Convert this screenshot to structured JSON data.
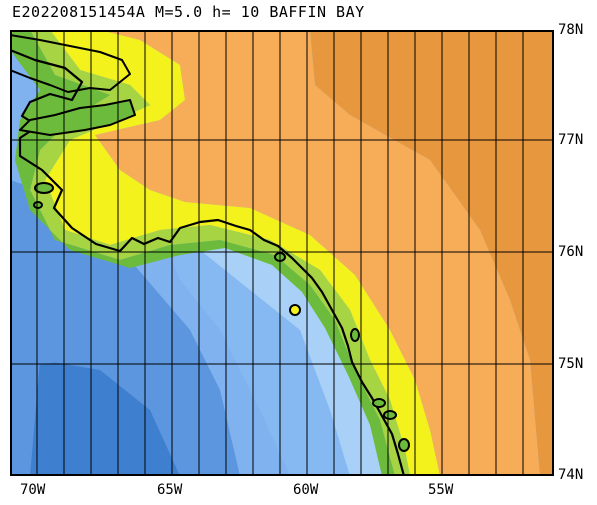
{
  "title": "E202208151454A M=5.0 h= 10 BAFFIN BAY",
  "map": {
    "lat_labels": [
      "78N",
      "77N",
      "76N",
      "75N",
      "74N"
    ],
    "lon_labels": [
      "70W",
      "65W",
      "60W",
      "55W"
    ],
    "colors": {
      "deep_water": "#3f7fcf",
      "mid_water": "#5c96df",
      "shallow_water": "#86b8f2",
      "coast_water": "#a9d1f7",
      "green_high": "#6cbb3c",
      "green_low": "#a6d443",
      "yellow_band": "#f3f21c",
      "orange_inner": "#f7ad58",
      "orange_outer": "#e7983e",
      "coastline": "#000000",
      "grid": "#000000"
    },
    "epicenter_marker": "yellow-square"
  }
}
